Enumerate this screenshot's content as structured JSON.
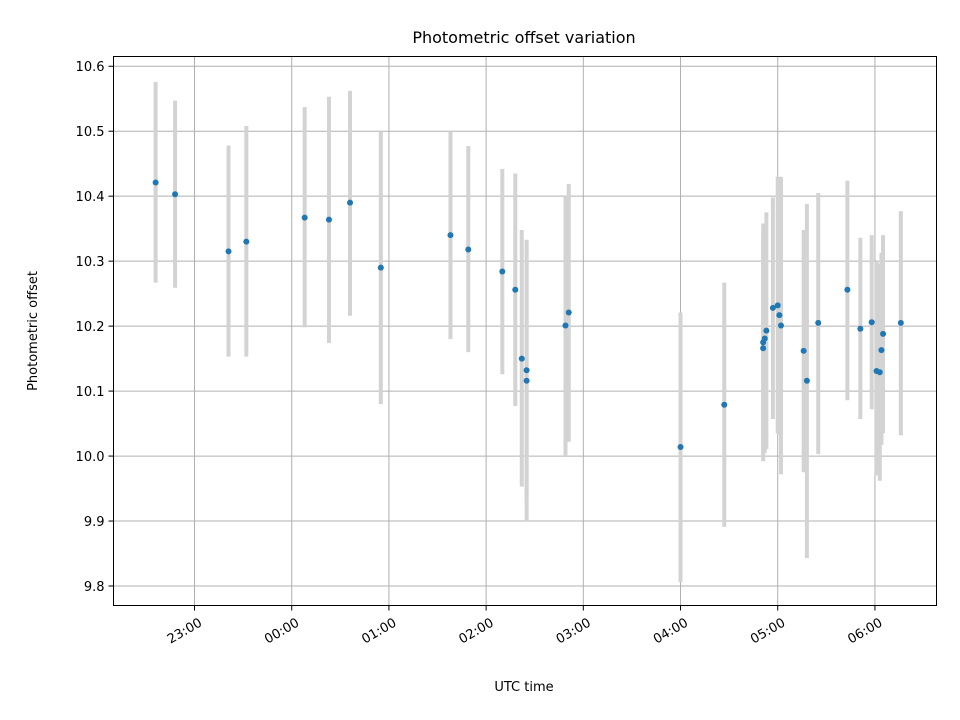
{
  "chart_data": {
    "type": "scatter",
    "title": "Photometric offset variation",
    "xlabel": "UTC time",
    "ylabel": "Photometric offset",
    "x_unit": "hours (UTC), day-relative",
    "xlim": [
      "22:10",
      "06:38"
    ],
    "ylim": [
      9.77,
      10.615
    ],
    "xticks": [
      {
        "x": "23:00",
        "label": "23:00"
      },
      {
        "x": "00:00",
        "label": "00:00"
      },
      {
        "x": "01:00",
        "label": "01:00"
      },
      {
        "x": "02:00",
        "label": "02:00"
      },
      {
        "x": "03:00",
        "label": "03:00"
      },
      {
        "x": "04:00",
        "label": "04:00"
      },
      {
        "x": "05:00",
        "label": "05:00"
      },
      {
        "x": "06:00",
        "label": "06:00"
      }
    ],
    "yticks": [
      9.8,
      9.9,
      10.0,
      10.1,
      10.2,
      10.3,
      10.4,
      10.5,
      10.6
    ],
    "ytick_labels": [
      "9.8",
      "9.9",
      "10.0",
      "10.1",
      "10.2",
      "10.3",
      "10.4",
      "10.5",
      "10.6"
    ],
    "grid": true,
    "point_color": "#1f77b4",
    "errorbar_color": "#d3d3d3",
    "points": [
      {
        "x": "22:36",
        "y": 10.421,
        "lo": 10.267,
        "hi": 10.576
      },
      {
        "x": "22:48",
        "y": 10.403,
        "lo": 10.259,
        "hi": 10.547
      },
      {
        "x": "23:21",
        "y": 10.315,
        "lo": 10.153,
        "hi": 10.478
      },
      {
        "x": "23:32",
        "y": 10.33,
        "lo": 10.153,
        "hi": 10.508
      },
      {
        "x": "00:08",
        "y": 10.367,
        "lo": 10.198,
        "hi": 10.537
      },
      {
        "x": "00:23",
        "y": 10.364,
        "lo": 10.174,
        "hi": 10.553
      },
      {
        "x": "00:36",
        "y": 10.39,
        "lo": 10.216,
        "hi": 10.562
      },
      {
        "x": "00:55",
        "y": 10.29,
        "lo": 10.08,
        "hi": 10.5
      },
      {
        "x": "01:38",
        "y": 10.34,
        "lo": 10.18,
        "hi": 10.5
      },
      {
        "x": "01:49",
        "y": 10.318,
        "lo": 10.16,
        "hi": 10.477
      },
      {
        "x": "02:10",
        "y": 10.284,
        "lo": 10.126,
        "hi": 10.442
      },
      {
        "x": "02:18",
        "y": 10.256,
        "lo": 10.077,
        "hi": 10.435
      },
      {
        "x": "02:22",
        "y": 10.15,
        "lo": 9.953,
        "hi": 10.348
      },
      {
        "x": "02:25",
        "y": 10.132,
        "lo": 9.934,
        "hi": 10.33
      },
      {
        "x": "02:25",
        "y": 10.116,
        "lo": 9.899,
        "hi": 10.333
      },
      {
        "x": "02:49",
        "y": 10.201,
        "lo": 10.0,
        "hi": 10.4
      },
      {
        "x": "02:51",
        "y": 10.221,
        "lo": 10.022,
        "hi": 10.419
      },
      {
        "x": "04:00",
        "y": 10.014,
        "lo": 9.806,
        "hi": 10.221
      },
      {
        "x": "04:27",
        "y": 10.079,
        "lo": 9.891,
        "hi": 10.267
      },
      {
        "x": "04:51",
        "y": 10.166,
        "lo": 10.0,
        "hi": 10.333
      },
      {
        "x": "04:51",
        "y": 10.175,
        "lo": 9.992,
        "hi": 10.358
      },
      {
        "x": "04:52",
        "y": 10.181,
        "lo": 10.005,
        "hi": 10.358
      },
      {
        "x": "04:53",
        "y": 10.193,
        "lo": 10.011,
        "hi": 10.375
      },
      {
        "x": "04:57",
        "y": 10.228,
        "lo": 10.057,
        "hi": 10.398
      },
      {
        "x": "05:00",
        "y": 10.232,
        "lo": 10.035,
        "hi": 10.43
      },
      {
        "x": "05:01",
        "y": 10.217,
        "lo": 10.033,
        "hi": 10.4
      },
      {
        "x": "05:02",
        "y": 10.201,
        "lo": 9.972,
        "hi": 10.43
      },
      {
        "x": "05:16",
        "y": 10.162,
        "lo": 9.975,
        "hi": 10.348
      },
      {
        "x": "05:18",
        "y": 10.116,
        "lo": 9.843,
        "hi": 10.388
      },
      {
        "x": "05:25",
        "y": 10.205,
        "lo": 10.003,
        "hi": 10.405
      },
      {
        "x": "05:43",
        "y": 10.256,
        "lo": 10.086,
        "hi": 10.424
      },
      {
        "x": "05:51",
        "y": 10.196,
        "lo": 10.057,
        "hi": 10.336
      },
      {
        "x": "05:58",
        "y": 10.206,
        "lo": 10.072,
        "hi": 10.34
      },
      {
        "x": "06:01",
        "y": 10.131,
        "lo": 9.97,
        "hi": 10.3
      },
      {
        "x": "06:03",
        "y": 10.129,
        "lo": 9.962,
        "hi": 10.296
      },
      {
        "x": "06:04",
        "y": 10.163,
        "lo": 10.017,
        "hi": 10.313
      },
      {
        "x": "06:05",
        "y": 10.188,
        "lo": 10.035,
        "hi": 10.34
      },
      {
        "x": "06:16",
        "y": 10.205,
        "lo": 10.032,
        "hi": 10.377
      }
    ]
  }
}
